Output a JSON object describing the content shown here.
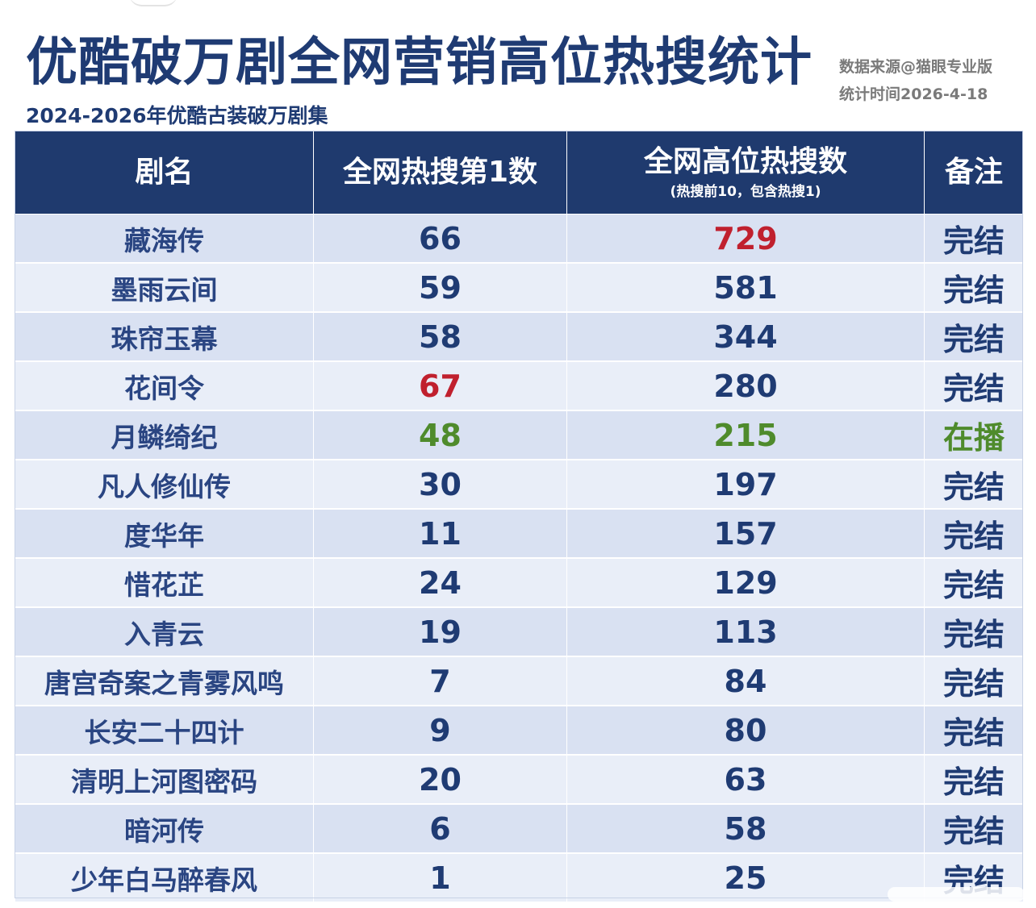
{
  "header": {
    "title": "优酷破万剧全网营销高位热搜统计",
    "subtitle": "2024-2026年优酷古装破万剧集",
    "source_line1": "数据来源@猫眼专业版",
    "source_line2": "统计时间2026-4-18"
  },
  "table": {
    "columns": [
      {
        "label": "剧名",
        "sublabel": ""
      },
      {
        "label": "全网热搜第1数",
        "sublabel": ""
      },
      {
        "label": "全网高位热搜数",
        "sublabel": "(热搜前10，包含热搜1)"
      },
      {
        "label": "备注",
        "sublabel": ""
      }
    ],
    "rows": [
      {
        "name": "藏海传",
        "top1": "66",
        "high": "729",
        "note": "完结"
      },
      {
        "name": "墨雨云间",
        "top1": "59",
        "high": "581",
        "note": "完结"
      },
      {
        "name": "珠帘玉幕",
        "top1": "58",
        "high": "344",
        "note": "完结"
      },
      {
        "name": "花间令",
        "top1": "67",
        "high": "280",
        "note": "完结"
      },
      {
        "name": "月鳞绮纪",
        "top1": "48",
        "high": "215",
        "note": "在播"
      },
      {
        "name": "凡人修仙传",
        "top1": "30",
        "high": "197",
        "note": "完结"
      },
      {
        "name": "度华年",
        "top1": "11",
        "high": "157",
        "note": "完结"
      },
      {
        "name": "惜花芷",
        "top1": "24",
        "high": "129",
        "note": "完结"
      },
      {
        "name": "入青云",
        "top1": "19",
        "high": "113",
        "note": "完结"
      },
      {
        "name": "唐宫奇案之青雾风鸣",
        "top1": "7",
        "high": "84",
        "note": "完结"
      },
      {
        "name": "长安二十四计",
        "top1": "9",
        "high": "80",
        "note": "完结"
      },
      {
        "name": "清明上河图密码",
        "top1": "20",
        "high": "63",
        "note": "完结"
      },
      {
        "name": "暗河传",
        "top1": "6",
        "high": "58",
        "note": "完结"
      },
      {
        "name": "少年白马醉春风",
        "top1": "1",
        "high": "25",
        "note": "完结"
      }
    ]
  },
  "colors": {
    "header_bg": "#1f3a6e",
    "title_text": "#1f3b73",
    "row_odd": "#d9e1f2",
    "row_even": "#e9eef8",
    "highlight_red": "#c0202e",
    "highlight_green": "#4f8b2c"
  }
}
